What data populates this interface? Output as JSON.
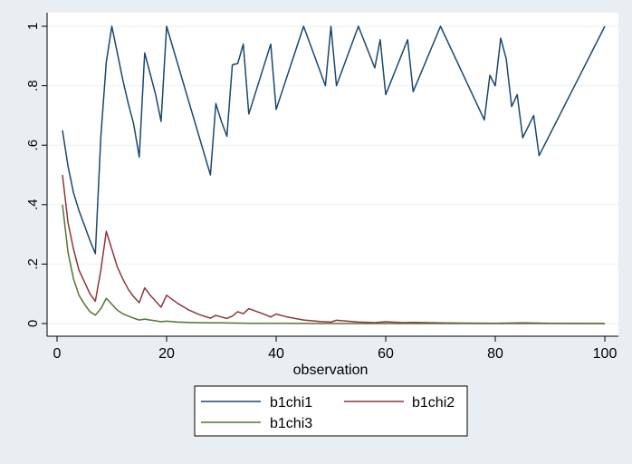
{
  "chart_data": {
    "type": "line",
    "xlabel": "observation",
    "xlim": [
      0,
      100
    ],
    "ylim": [
      0,
      1
    ],
    "x_ticks": [
      0,
      20,
      40,
      60,
      80,
      100
    ],
    "y_ticks": [
      0,
      0.2,
      0.4,
      0.6,
      0.8,
      1
    ],
    "x_tick_labels": [
      "0",
      "20",
      "40",
      "60",
      "80",
      "100"
    ],
    "y_tick_labels": [
      "0",
      ".2",
      ".4",
      ".6",
      ".8",
      "1"
    ],
    "grid": "horizontal",
    "legend_position": "bottom",
    "series": [
      {
        "name": "b1chi1",
        "color": "#1a476f",
        "points": [
          [
            1,
            0.65
          ],
          [
            2,
            0.53
          ],
          [
            3,
            0.44
          ],
          [
            4,
            0.38
          ],
          [
            5,
            0.33
          ],
          [
            6,
            0.28
          ],
          [
            7,
            0.235
          ],
          [
            8,
            0.63
          ],
          [
            9,
            0.88
          ],
          [
            10,
            1.0
          ],
          [
            11,
            0.91
          ],
          [
            12,
            0.82
          ],
          [
            13,
            0.74
          ],
          [
            14,
            0.67
          ],
          [
            15,
            0.56
          ],
          [
            16,
            0.91
          ],
          [
            17,
            0.84
          ],
          [
            18,
            0.77
          ],
          [
            19,
            0.68
          ],
          [
            20,
            1.0
          ],
          [
            28,
            0.5
          ],
          [
            29,
            0.74
          ],
          [
            30,
            0.68
          ],
          [
            31,
            0.63
          ],
          [
            32,
            0.87
          ],
          [
            33,
            0.875
          ],
          [
            34,
            0.94
          ],
          [
            35,
            0.705
          ],
          [
            39,
            0.94
          ],
          [
            40,
            0.72
          ],
          [
            45,
            1.0
          ],
          [
            49,
            0.8
          ],
          [
            50,
            1.0
          ],
          [
            51,
            0.8
          ],
          [
            55,
            1.0
          ],
          [
            58,
            0.86
          ],
          [
            59,
            0.955
          ],
          [
            60,
            0.77
          ],
          [
            64,
            0.955
          ],
          [
            65,
            0.78
          ],
          [
            70,
            1.0
          ],
          [
            78,
            0.685
          ],
          [
            79,
            0.835
          ],
          [
            80,
            0.8
          ],
          [
            81,
            0.96
          ],
          [
            82,
            0.89
          ],
          [
            83,
            0.73
          ],
          [
            84,
            0.77
          ],
          [
            85,
            0.625
          ],
          [
            87,
            0.7
          ],
          [
            88,
            0.565
          ],
          [
            100,
            1.0
          ]
        ]
      },
      {
        "name": "b1chi2",
        "color": "#90353b",
        "points": [
          [
            1,
            0.5
          ],
          [
            2,
            0.34
          ],
          [
            3,
            0.25
          ],
          [
            4,
            0.18
          ],
          [
            5,
            0.14
          ],
          [
            6,
            0.1
          ],
          [
            7,
            0.075
          ],
          [
            8,
            0.18
          ],
          [
            9,
            0.31
          ],
          [
            10,
            0.25
          ],
          [
            11,
            0.19
          ],
          [
            12,
            0.15
          ],
          [
            13,
            0.115
          ],
          [
            14,
            0.09
          ],
          [
            15,
            0.07
          ],
          [
            16,
            0.12
          ],
          [
            17,
            0.095
          ],
          [
            18,
            0.075
          ],
          [
            19,
            0.055
          ],
          [
            20,
            0.095
          ],
          [
            22,
            0.068
          ],
          [
            24,
            0.046
          ],
          [
            26,
            0.03
          ],
          [
            28,
            0.018
          ],
          [
            29,
            0.027
          ],
          [
            30,
            0.022
          ],
          [
            31,
            0.017
          ],
          [
            32,
            0.025
          ],
          [
            33,
            0.04
          ],
          [
            34,
            0.033
          ],
          [
            35,
            0.05
          ],
          [
            38,
            0.03
          ],
          [
            39,
            0.022
          ],
          [
            40,
            0.032
          ],
          [
            42,
            0.022
          ],
          [
            45,
            0.012
          ],
          [
            48,
            0.007
          ],
          [
            50,
            0.005
          ],
          [
            51,
            0.011
          ],
          [
            53,
            0.008
          ],
          [
            55,
            0.005
          ],
          [
            58,
            0.003
          ],
          [
            60,
            0.006
          ],
          [
            63,
            0.003
          ],
          [
            65,
            0.004
          ],
          [
            70,
            0.002
          ],
          [
            80,
            0.001
          ],
          [
            85,
            0.002
          ],
          [
            90,
            0.001
          ],
          [
            100,
            0.0
          ]
        ]
      },
      {
        "name": "b1chi3",
        "color": "#55752f",
        "points": [
          [
            1,
            0.4
          ],
          [
            2,
            0.24
          ],
          [
            3,
            0.15
          ],
          [
            4,
            0.095
          ],
          [
            5,
            0.065
          ],
          [
            6,
            0.04
          ],
          [
            7,
            0.028
          ],
          [
            8,
            0.05
          ],
          [
            9,
            0.085
          ],
          [
            10,
            0.065
          ],
          [
            11,
            0.045
          ],
          [
            12,
            0.033
          ],
          [
            13,
            0.025
          ],
          [
            14,
            0.018
          ],
          [
            15,
            0.012
          ],
          [
            16,
            0.015
          ],
          [
            17,
            0.012
          ],
          [
            18,
            0.009
          ],
          [
            19,
            0.006
          ],
          [
            20,
            0.008
          ],
          [
            22,
            0.005
          ],
          [
            25,
            0.003
          ],
          [
            28,
            0.002
          ],
          [
            30,
            0.002
          ],
          [
            35,
            0.001
          ],
          [
            40,
            0.001
          ],
          [
            50,
            0.0
          ],
          [
            60,
            0.0
          ],
          [
            70,
            0.0
          ],
          [
            80,
            0.0
          ],
          [
            90,
            0.0
          ],
          [
            100,
            0.0
          ]
        ]
      }
    ]
  }
}
